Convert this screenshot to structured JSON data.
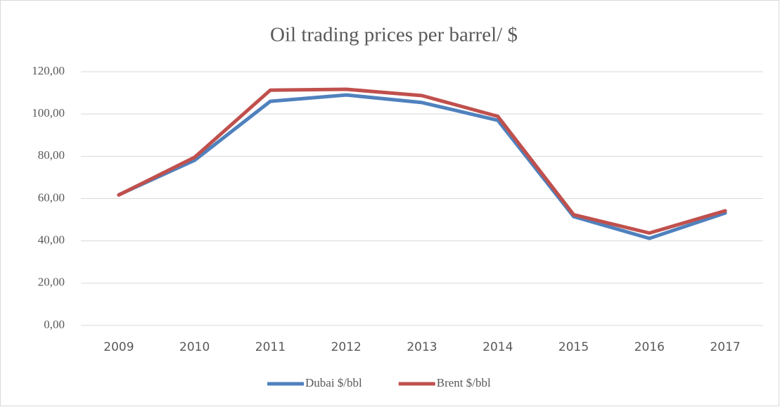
{
  "chart_data": {
    "type": "line",
    "title": "Oil trading prices per barrel/ $",
    "categories": [
      "2009",
      "2010",
      "2011",
      "2012",
      "2013",
      "2014",
      "2015",
      "2016",
      "2017"
    ],
    "series": [
      {
        "name": "Dubai $/bbl",
        "color": "#4f81bd",
        "values": [
          61.8,
          78.1,
          106.0,
          109.0,
          105.4,
          97.0,
          51.5,
          41.2,
          53.2
        ]
      },
      {
        "name": "Brent $/bbl",
        "color": "#c0504d",
        "values": [
          61.7,
          79.5,
          111.3,
          111.7,
          108.7,
          98.9,
          52.4,
          43.7,
          54.2
        ]
      }
    ],
    "ylim": [
      0,
      120
    ],
    "yticks": [
      {
        "value": 0,
        "label": "0,00"
      },
      {
        "value": 20,
        "label": "20,00"
      },
      {
        "value": 40,
        "label": "40,00"
      },
      {
        "value": 60,
        "label": "60,00"
      },
      {
        "value": 80,
        "label": "80,00"
      },
      {
        "value": 100,
        "label": "100,00"
      },
      {
        "value": 120,
        "label": "120,00"
      }
    ],
    "grid": true,
    "legend": "bottom"
  }
}
